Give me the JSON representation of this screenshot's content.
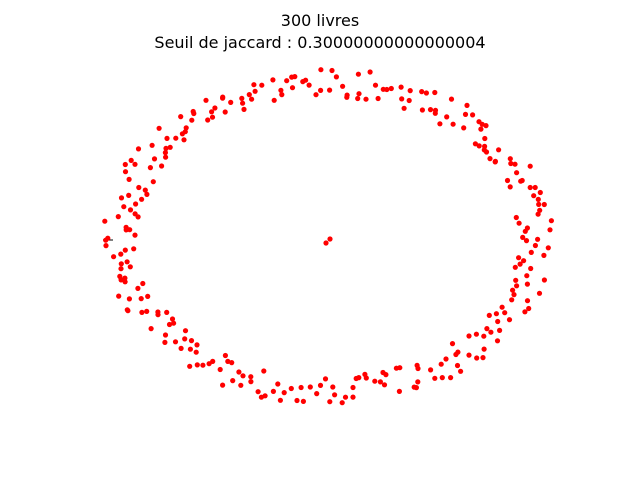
{
  "figure": {
    "title": "300 livres",
    "subtitle": "Seuil de jaccard : 0.30000000000000004"
  },
  "graph": {
    "node_color": "#ff0000",
    "edge_color": "#000000",
    "node_count_shown": 300
  }
}
